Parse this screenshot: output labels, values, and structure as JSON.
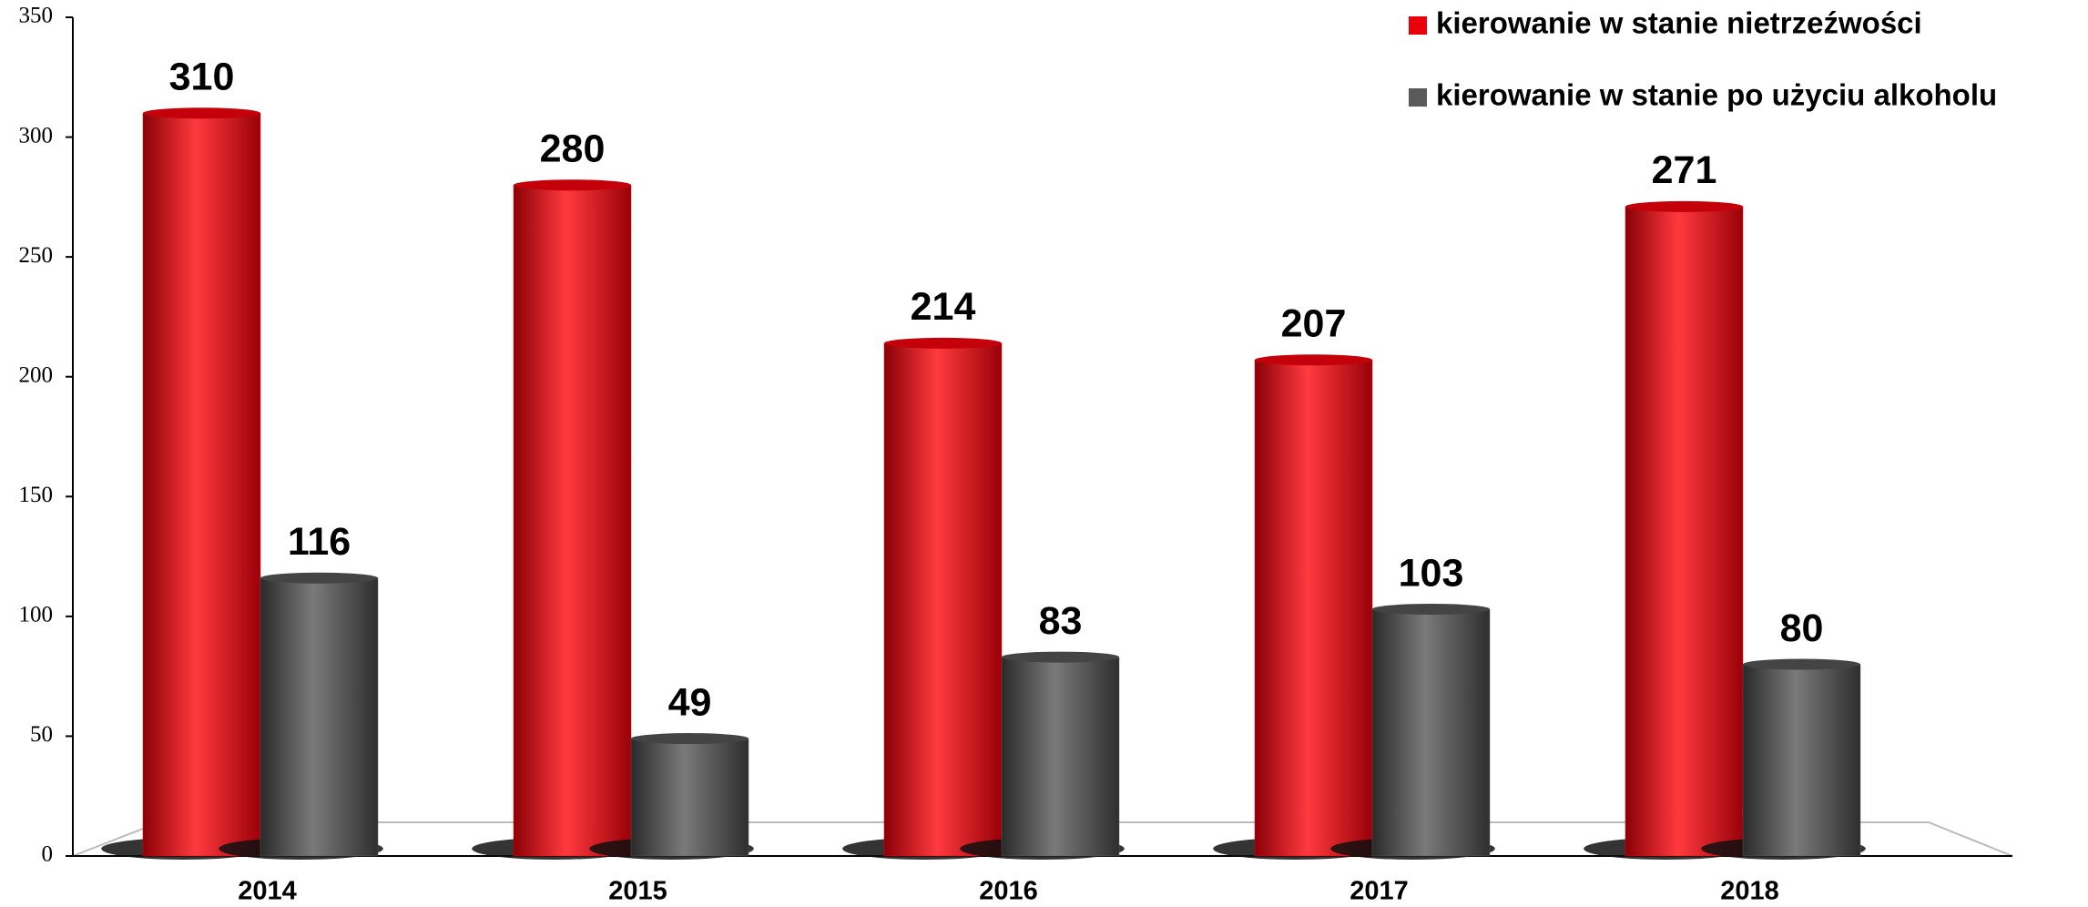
{
  "chart_data": {
    "type": "bar",
    "categories": [
      "2014",
      "2015",
      "2016",
      "2017",
      "2018"
    ],
    "series": [
      {
        "name": "kierowanie w stanie nietrzeźwości",
        "color": "#e8000b",
        "values": [
          310,
          280,
          214,
          207,
          271
        ]
      },
      {
        "name": "kierowanie w stanie po użyciu alkoholu",
        "color": "#5a5a5a",
        "values": [
          116,
          49,
          83,
          103,
          80
        ]
      }
    ],
    "ylim": [
      0,
      350
    ],
    "yticks": [
      0,
      50,
      100,
      150,
      200,
      250,
      300,
      350
    ],
    "legend": "top-right"
  }
}
